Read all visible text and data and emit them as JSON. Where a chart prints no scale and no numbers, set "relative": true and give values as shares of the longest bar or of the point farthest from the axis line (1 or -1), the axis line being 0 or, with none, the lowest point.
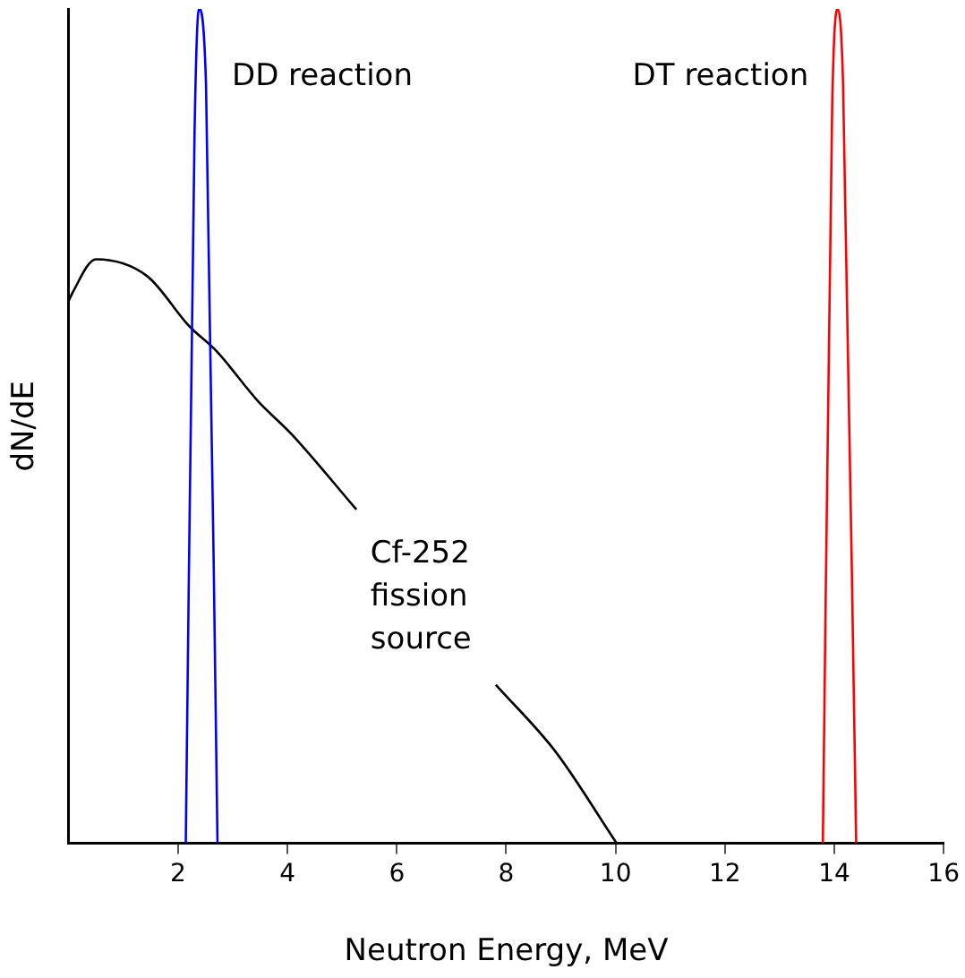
{
  "chart_data": {
    "type": "line",
    "xlabel": "Neutron Energy, MeV",
    "ylabel": "dN/dE",
    "relative": true,
    "grid": false,
    "legend": false,
    "marker": "none",
    "xlim": [
      0,
      16
    ],
    "xticks": [
      2,
      4,
      6,
      8,
      10,
      12,
      14,
      16
    ],
    "series": [
      {
        "name": "DD reaction",
        "color": "#0000ff",
        "x": [
          2.14,
          2.3,
          2.38,
          2.51,
          2.72
        ],
        "values": [
          0,
          0.85,
          1,
          0.91,
          0
        ]
      },
      {
        "name": "DT reaction",
        "color": "#ff0000",
        "x": [
          13.79,
          13.96,
          14.06,
          14.16,
          14.4
        ],
        "values": [
          0,
          0.88,
          1,
          0.91,
          0
        ]
      },
      {
        "name": "Cf-252 fission source",
        "color": "#000000",
        "x": [
          0,
          0.07,
          0.5,
          1.43,
          2.2,
          2.7,
          3.46,
          4.08,
          5.26,
          6.5,
          7.81,
          8.9,
          10.02
        ],
        "values": [
          0.65,
          0.66,
          0.7,
          0.68,
          0.62,
          0.59,
          0.53,
          0.49,
          0.4,
          null,
          0.19,
          0.11,
          0
        ]
      }
    ]
  }
}
